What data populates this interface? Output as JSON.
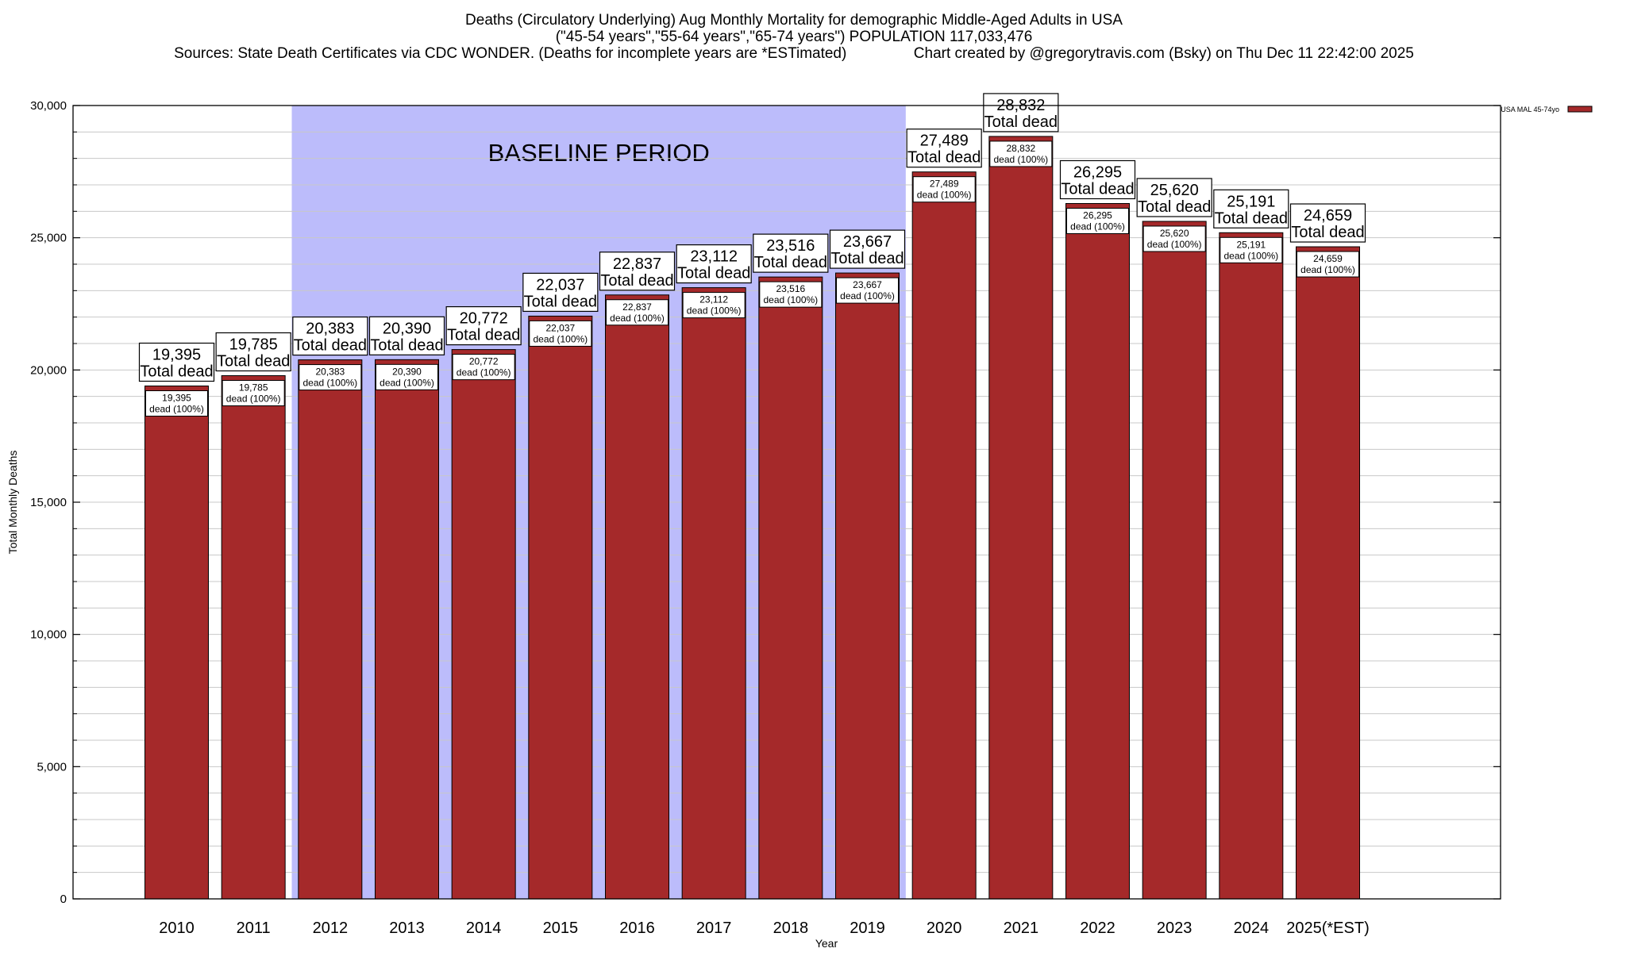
{
  "title_lines": [
    "Deaths (Circulatory Underlying) Aug Monthly Mortality for demographic Middle-Aged Adults in USA",
    "(\"45-54 years\",\"55-64 years\",\"65-74 years\") POPULATION 117,033,476",
    "Sources: State Death Certificates via CDC WONDER. (Deaths for incomplete years are *ESTimated)                Chart created by @gregorytravis.com (Bsky) on Thu Dec 11 22:42:00 2025"
  ],
  "colors": {
    "bar": "#a5292a",
    "baseline": "#bcbcfb",
    "grid": "#c8c8c8"
  },
  "chart_data": {
    "type": "bar",
    "xlabel": "Year",
    "ylabel": "Total Monthly Deaths",
    "ylim": [
      0,
      30000
    ],
    "yticks": [
      0,
      5000,
      10000,
      15000,
      20000,
      25000,
      30000
    ],
    "ytick_labels": [
      "0",
      "5,000",
      "10,000",
      "15,000",
      "20,000",
      "25,000",
      "30,000"
    ],
    "categories": [
      "2010",
      "2011",
      "2012",
      "2013",
      "2014",
      "2015",
      "2016",
      "2017",
      "2018",
      "2019",
      "2020",
      "2021",
      "2022",
      "2023",
      "2024",
      "2025(*EST)"
    ],
    "values": [
      19395,
      19785,
      20383,
      20390,
      20772,
      22037,
      22837,
      23112,
      23516,
      23667,
      27489,
      28832,
      26295,
      25620,
      25191,
      24659
    ],
    "value_labels": [
      "19,395",
      "19,785",
      "20,383",
      "20,390",
      "20,772",
      "22,037",
      "22,837",
      "23,112",
      "23,516",
      "23,667",
      "27,489",
      "28,832",
      "26,295",
      "25,620",
      "25,191",
      "24,659"
    ],
    "total_label": "Total dead",
    "inner_label_suffix": "dead (100%)",
    "baseline": {
      "label": "BASELINE PERIOD",
      "start": "2012",
      "end": "2019"
    },
    "legend": {
      "label": "USA MAL 45-74yo",
      "position": "top-right"
    }
  }
}
